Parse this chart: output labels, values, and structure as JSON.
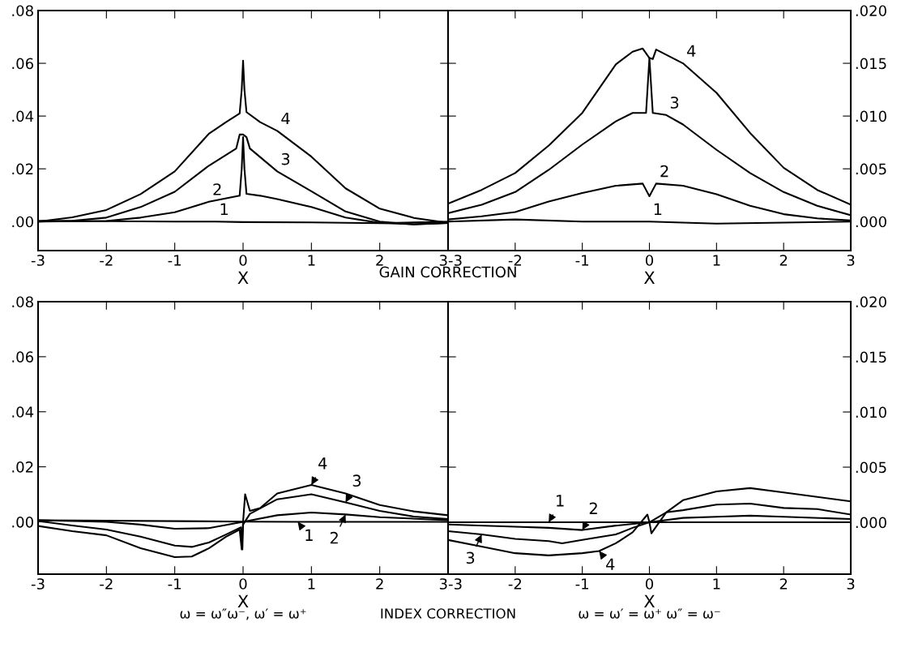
{
  "chart_data": [
    {
      "type": "line",
      "xlabel": "X",
      "xlim": [
        -3,
        3
      ],
      "xticks": [
        -3,
        -2,
        -1,
        0,
        1,
        2,
        3
      ],
      "ylim": [
        -0.011,
        0.08
      ],
      "yticks": [
        {
          "value": 0,
          "label": ".00"
        },
        {
          "value": 0.02,
          "label": ".02"
        },
        {
          "value": 0.04,
          "label": ".04"
        },
        {
          "value": 0.06,
          "label": ".06"
        },
        {
          "value": 0.08,
          "label": ".08"
        }
      ],
      "series": [
        {
          "color": "#000000",
          "x": [
            -3,
            -1,
            -0.4,
            0,
            1,
            2,
            3
          ],
          "values": [
            0.0003,
            0.0,
            0.0,
            -0.0002,
            -0.0003,
            -0.0006,
            -0.0001
          ]
        },
        {
          "color": "#000000",
          "x": [
            -3,
            -2,
            -1.5,
            -1,
            -0.5,
            -0.05,
            -0.02,
            0,
            0.02,
            0.05,
            0.25,
            0.5,
            1,
            1.5,
            2,
            2.5,
            3
          ],
          "values": [
            0.0,
            0.0002,
            0.0015,
            0.0035,
            0.0075,
            0.0098,
            0.02,
            0.032,
            0.02,
            0.0105,
            0.0098,
            0.0085,
            0.0055,
            0.0015,
            -0.0005,
            -0.001,
            -0.0005
          ]
        },
        {
          "color": "#000000",
          "x": [
            -3,
            -2.5,
            -2,
            -1.5,
            -1,
            -0.5,
            -0.1,
            -0.05,
            0,
            0.05,
            0.1,
            0.5,
            1,
            1.5,
            2,
            2.5,
            3
          ],
          "values": [
            0.0,
            0.0003,
            0.0015,
            0.0055,
            0.0113,
            0.0212,
            0.0277,
            0.033,
            0.033,
            0.032,
            0.0277,
            0.019,
            0.0115,
            0.0038,
            0.0,
            -0.0011,
            -0.0005
          ]
        },
        {
          "color": "#000000",
          "x": [
            -3,
            -2.5,
            -2,
            -1.5,
            -1,
            -0.5,
            -0.25,
            -0.05,
            -0.02,
            0,
            0.02,
            0.05,
            0.25,
            0.5,
            1,
            1.5,
            2,
            2.5,
            3
          ],
          "values": [
            0.0,
            0.0016,
            0.0044,
            0.0104,
            0.019,
            0.0333,
            0.0377,
            0.041,
            0.05,
            0.061,
            0.05,
            0.0415,
            0.0377,
            0.0344,
            0.0246,
            0.0126,
            0.0049,
            0.0014,
            -0.0005
          ]
        }
      ],
      "annotations": [
        {
          "text": "4",
          "x": 0.5,
          "y": 0.0344
        },
        {
          "text": "3",
          "x": 0.5,
          "y": 0.019
        },
        {
          "text": "2",
          "x": -0.5,
          "y": 0.0075
        },
        {
          "text": "1",
          "x": -0.4,
          "y": 0.0
        },
        "GAIN CORRECTION"
      ]
    },
    {
      "type": "line",
      "xlabel": "X",
      "xlim": [
        -3,
        3
      ],
      "xticks": [
        -3,
        -2,
        -1,
        0,
        1,
        2,
        3
      ],
      "ylim": [
        -0.00275,
        0.02
      ],
      "yticks": [
        {
          "value": 0,
          "label": ".000"
        },
        {
          "value": 0.005,
          "label": ".005"
        },
        {
          "value": 0.01,
          "label": ".010"
        },
        {
          "value": 0.015,
          "label": ".015"
        },
        {
          "value": 0.02,
          "label": ".020"
        }
      ],
      "series": [
        {
          "color": "#000000",
          "x": [
            -3,
            -2,
            -1,
            0,
            1,
            2,
            3
          ],
          "values": [
            0.0,
            0.0002,
            0.0,
            0.0,
            -0.0002,
            -0.0001,
            0.0
          ]
        },
        {
          "color": "#000000",
          "x": [
            -3,
            -2.5,
            -2,
            -1.5,
            -1,
            -0.5,
            -0.1,
            0,
            0.1,
            0.5,
            1,
            1.5,
            2,
            2.5,
            3
          ],
          "values": [
            0.0002,
            0.0005,
            0.0009,
            0.0019,
            0.0027,
            0.0034,
            0.0036,
            0.0024,
            0.0036,
            0.0034,
            0.0026,
            0.0015,
            0.0007,
            0.0003,
            0.0001
          ]
        },
        {
          "color": "#000000",
          "x": [
            -3,
            -2.5,
            -2,
            -1.5,
            -1,
            -0.5,
            -0.25,
            -0.05,
            0,
            0.05,
            0.25,
            0.5,
            1,
            1.5,
            2,
            2.5,
            3
          ],
          "values": [
            0.0008,
            0.0016,
            0.0028,
            0.0049,
            0.0073,
            0.0095,
            0.0103,
            0.0103,
            0.0155,
            0.0103,
            0.0101,
            0.0092,
            0.0068,
            0.0046,
            0.0028,
            0.0015,
            0.0006
          ]
        },
        {
          "color": "#000000",
          "x": [
            -3,
            -2.5,
            -2,
            -1.5,
            -1,
            -0.5,
            -0.25,
            -0.1,
            0,
            0.05,
            0.1,
            0.5,
            1,
            1.5,
            2,
            2.5,
            3
          ],
          "values": [
            0.0017,
            0.003,
            0.0046,
            0.0072,
            0.0103,
            0.0149,
            0.0161,
            0.0164,
            0.0155,
            0.0154,
            0.0163,
            0.015,
            0.0122,
            0.0084,
            0.0051,
            0.003,
            0.0016
          ]
        }
      ],
      "annotations": [
        {
          "text": "4",
          "x": 0.5,
          "y": 0.015
        },
        {
          "text": "3",
          "x": 0.25,
          "y": 0.0101
        },
        {
          "text": "2",
          "x": 0.1,
          "y": 0.0036
        },
        {
          "text": "1",
          "x": 0,
          "y": 0.0
        }
      ]
    },
    {
      "type": "line",
      "xlabel": "X",
      "xlim": [
        -3,
        3
      ],
      "xticks": [
        -3,
        -2,
        -1,
        0,
        1,
        2,
        3
      ],
      "ylim": [
        -0.019,
        0.08
      ],
      "yticks": [
        {
          "value": 0,
          "label": ".00"
        },
        {
          "value": 0.02,
          "label": ".02"
        },
        {
          "value": 0.04,
          "label": ".04"
        },
        {
          "value": 0.06,
          "label": ".06"
        },
        {
          "value": 0.08,
          "label": ".08"
        }
      ],
      "series": [
        {
          "color": "#000000",
          "x": [
            -3,
            0,
            0.8,
            3
          ],
          "values": [
            0.0006,
            0.0001,
            0.0,
            0.0
          ]
        },
        {
          "color": "#000000",
          "x": [
            -3,
            -2,
            -1.5,
            -1,
            -0.5,
            0,
            0.5,
            1,
            1.5,
            2,
            3
          ],
          "values": [
            0.0006,
            0.0,
            -0.001,
            -0.0025,
            -0.0023,
            0.0,
            0.0024,
            0.0034,
            0.0027,
            0.0017,
            0.0006
          ]
        },
        {
          "color": "#000000",
          "x": [
            -3,
            -2.5,
            -2,
            -1.5,
            -1,
            -0.75,
            -0.5,
            -0.25,
            -0.03,
            -0.01,
            0,
            0.1,
            0.5,
            1,
            1.5,
            2,
            2.5,
            3
          ],
          "values": [
            0.0003,
            -0.0013,
            -0.0028,
            -0.0054,
            -0.0086,
            -0.0091,
            -0.0075,
            -0.0046,
            -0.002,
            -0.01,
            -0.001,
            0.0029,
            0.0082,
            0.01,
            0.0071,
            0.004,
            0.0019,
            0.001
          ]
        },
        {
          "color": "#000000",
          "x": [
            -3,
            -2.5,
            -2,
            -1.5,
            -1,
            -0.75,
            -0.5,
            -0.25,
            -0.05,
            -0.02,
            0,
            0.03,
            0.1,
            0.25,
            0.5,
            1,
            1.5,
            2,
            2.5,
            3
          ],
          "values": [
            -0.0015,
            -0.0034,
            -0.0049,
            -0.0096,
            -0.0128,
            -0.0126,
            -0.0096,
            -0.0054,
            -0.0028,
            -0.01,
            0.0,
            0.01,
            0.004,
            0.005,
            0.0103,
            0.0134,
            0.0103,
            0.0061,
            0.0038,
            0.0024
          ]
        }
      ],
      "annotations": [
        {
          "text": "4",
          "x": 1,
          "y": 0.0134
        },
        {
          "text": "3",
          "x": 1.5,
          "y": 0.0071
        },
        {
          "text": "2",
          "x": 1.5,
          "y": 0.0027
        },
        {
          "text": "1",
          "x": 0.8,
          "y": 0.0
        },
        "ω = ω″ω⁻, ω′ = ω⁺",
        "INDEX CORRECTION"
      ]
    },
    {
      "type": "line",
      "xlabel": "X",
      "xlim": [
        -3,
        3
      ],
      "xticks": [
        -3,
        -2,
        -1,
        0,
        1,
        2,
        3
      ],
      "ylim": [
        -0.0047,
        0.02
      ],
      "yticks": [
        {
          "value": 0,
          "label": ".000"
        },
        {
          "value": 0.005,
          "label": ".005"
        },
        {
          "value": 0.01,
          "label": ".010"
        },
        {
          "value": 0.015,
          "label": ".015"
        },
        {
          "value": 0.02,
          "label": ".020"
        }
      ],
      "series": [
        {
          "color": "#000000",
          "x": [
            -3,
            -1.5,
            0,
            3
          ],
          "values": [
            0.0,
            0.0,
            0.0,
            0.0
          ]
        },
        {
          "color": "#000000",
          "x": [
            -3,
            -2,
            -1.5,
            -1,
            -0.5,
            0,
            0.5,
            1,
            1.5,
            2,
            3
          ],
          "values": [
            -0.0002,
            -0.0004,
            -0.0005,
            -0.0007,
            -0.0003,
            0.0,
            0.0004,
            0.0005,
            0.0006,
            0.0005,
            0.0003
          ]
        },
        {
          "color": "#000000",
          "x": [
            -3,
            -2.5,
            -2,
            -1.5,
            -1.3,
            -1,
            -0.5,
            -0.25,
            0,
            0.25,
            0.5,
            1,
            1.5,
            2,
            2.5,
            3
          ],
          "values": [
            -0.0008,
            -0.0011,
            -0.0015,
            -0.0017,
            -0.0019,
            -0.0016,
            -0.0011,
            -0.0005,
            0.0,
            0.0009,
            0.0011,
            0.0016,
            0.0017,
            0.0013,
            0.0012,
            0.0007
          ]
        },
        {
          "color": "#000000",
          "x": [
            -3,
            -2.5,
            -2,
            -1.5,
            -1,
            -0.75,
            -0.5,
            -0.25,
            -0.03,
            0,
            0.03,
            0.25,
            0.5,
            1,
            1.5,
            2,
            2.5,
            3
          ],
          "values": [
            -0.0016,
            -0.0022,
            -0.0028,
            -0.003,
            -0.0028,
            -0.0026,
            -0.0019,
            -0.0009,
            0.0007,
            0.0,
            -0.001,
            0.0009,
            0.002,
            0.0028,
            0.0031,
            0.0027,
            0.0023,
            0.0019
          ]
        }
      ],
      "annotations": [
        {
          "text": "1",
          "x": -1.5,
          "y": 0.0
        },
        {
          "text": "2",
          "x": -1,
          "y": -0.0007
        },
        {
          "text": "3",
          "x": -2.5,
          "y": -0.0011
        },
        {
          "text": "4",
          "x": -0.75,
          "y": -0.0026
        },
        "ω = ω′ = ω⁺ ω″ = ω⁻"
      ]
    }
  ]
}
